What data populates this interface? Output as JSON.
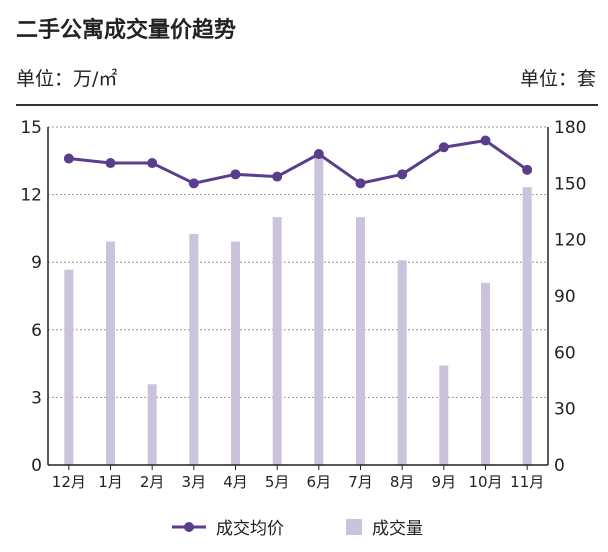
{
  "colors": {
    "line": "#5a3e8c",
    "bar": "#cbc3dc",
    "grid": "#999999",
    "axis": "#222222"
  },
  "chart_data": {
    "type": "bar+line",
    "title": "二手公寓成交量价趋势",
    "left_unit": "单位：万/㎡",
    "right_unit": "单位：套",
    "categories": [
      "12月",
      "1月",
      "2月",
      "3月",
      "4月",
      "5月",
      "6月",
      "7月",
      "8月",
      "9月",
      "10月",
      "11月"
    ],
    "left_ticks": [
      "0",
      "3",
      "6",
      "9",
      "12",
      "15"
    ],
    "right_ticks": [
      "0",
      "30",
      "60",
      "90",
      "120",
      "150",
      "180"
    ],
    "left_ylim": [
      0,
      15
    ],
    "right_ylim": [
      0,
      180
    ],
    "grid": true,
    "legend_position": "bottom",
    "series": [
      {
        "name": "成交均价",
        "type": "line",
        "axis": "left",
        "values": [
          13.6,
          13.4,
          13.4,
          12.5,
          12.9,
          12.8,
          13.8,
          12.5,
          12.9,
          14.1,
          14.4,
          13.1
        ]
      },
      {
        "name": "成交量",
        "type": "bar",
        "axis": "right",
        "values": [
          104,
          119,
          43,
          123,
          119,
          132,
          164,
          132,
          109,
          53,
          97,
          148
        ]
      }
    ]
  }
}
